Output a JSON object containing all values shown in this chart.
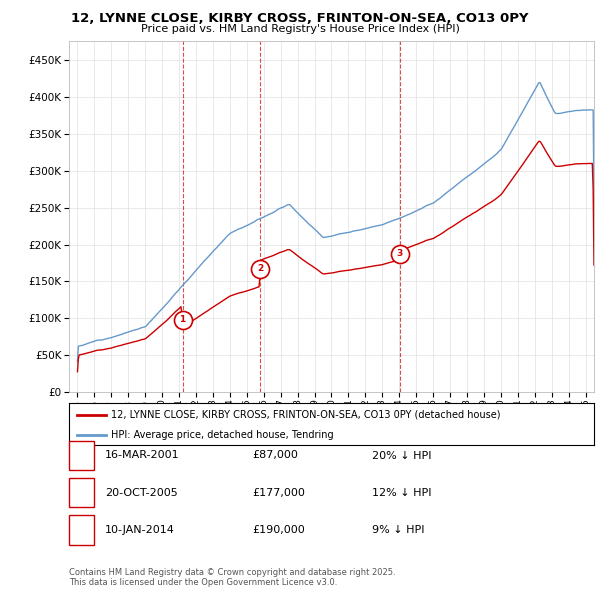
{
  "title": "12, LYNNE CLOSE, KIRBY CROSS, FRINTON-ON-SEA, CO13 0PY",
  "subtitle": "Price paid vs. HM Land Registry's House Price Index (HPI)",
  "legend_line1": "12, LYNNE CLOSE, KIRBY CROSS, FRINTON-ON-SEA, CO13 0PY (detached house)",
  "legend_line2": "HPI: Average price, detached house, Tendring",
  "transactions": [
    {
      "num": 1,
      "date": "16-MAR-2001",
      "price": 87000,
      "pct": "20%",
      "dir": "↓",
      "x_year": 2001.21
    },
    {
      "num": 2,
      "date": "20-OCT-2005",
      "price": 177000,
      "pct": "12%",
      "dir": "↓",
      "x_year": 2005.8
    },
    {
      "num": 3,
      "date": "10-JAN-2014",
      "price": 190000,
      "pct": "9%",
      "dir": "↓",
      "x_year": 2014.03
    }
  ],
  "footnote": "Contains HM Land Registry data © Crown copyright and database right 2025.\nThis data is licensed under the Open Government Licence v3.0.",
  "sale_color": "#cc0000",
  "hpi_color": "#6699cc",
  "vline_color": "#cc0000",
  "ylim": [
    0,
    475000
  ],
  "yticks": [
    0,
    50000,
    100000,
    150000,
    200000,
    250000,
    300000,
    350000,
    400000,
    450000
  ],
  "xlim": [
    1994.5,
    2025.5
  ],
  "xticks": [
    1995,
    1996,
    1997,
    1998,
    1999,
    2000,
    2001,
    2002,
    2003,
    2004,
    2005,
    2006,
    2007,
    2008,
    2009,
    2010,
    2011,
    2012,
    2013,
    2014,
    2015,
    2016,
    2017,
    2018,
    2019,
    2020,
    2021,
    2022,
    2023,
    2024,
    2025
  ]
}
